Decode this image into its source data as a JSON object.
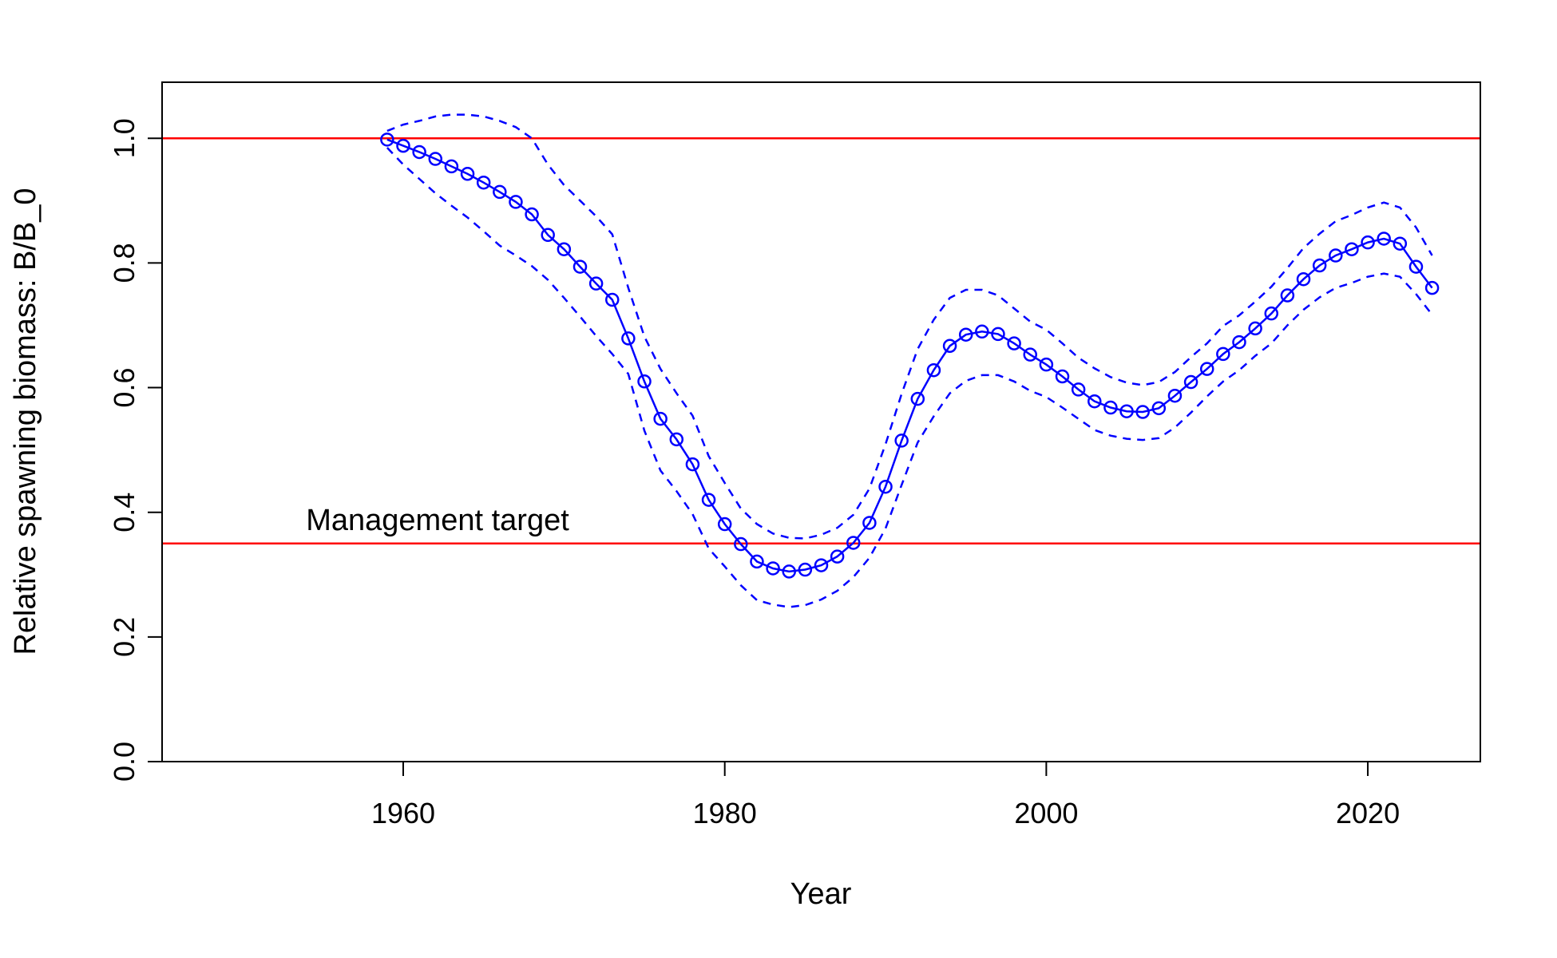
{
  "chart_data": {
    "type": "line",
    "title": "",
    "xlabel": "Year",
    "ylabel": "Relative spawning biomass: B/B_0",
    "xlim": [
      1945,
      2027
    ],
    "ylim": [
      0,
      1.09
    ],
    "x_ticks": [
      1960,
      1980,
      2000,
      2020
    ],
    "y_ticks": [
      0.0,
      0.2,
      0.4,
      0.6,
      0.8,
      1.0
    ],
    "x_tick_labels": [
      "1960",
      "1980",
      "2000",
      "2020"
    ],
    "y_tick_labels": [
      "0.0",
      "0.2",
      "0.4",
      "0.6",
      "0.8",
      "1.0"
    ],
    "grid": false,
    "colors": {
      "series": "#0000ff",
      "reference": "#ff0000"
    },
    "reference_lines": [
      {
        "y": 1.0
      },
      {
        "y": 0.35,
        "label": "Management target"
      }
    ],
    "x": [
      1959,
      1960,
      1961,
      1962,
      1963,
      1964,
      1965,
      1966,
      1967,
      1968,
      1969,
      1970,
      1971,
      1972,
      1973,
      1974,
      1975,
      1976,
      1977,
      1978,
      1979,
      1980,
      1981,
      1982,
      1983,
      1984,
      1985,
      1986,
      1987,
      1988,
      1989,
      1990,
      1991,
      1992,
      1993,
      1994,
      1995,
      1996,
      1997,
      1998,
      1999,
      2000,
      2001,
      2002,
      2003,
      2004,
      2005,
      2006,
      2007,
      2008,
      2009,
      2010,
      2011,
      2012,
      2013,
      2014,
      2015,
      2016,
      2017,
      2018,
      2019,
      2020,
      2021,
      2022,
      2023,
      2024
    ],
    "series": [
      {
        "role": "estimate",
        "style": "line+points",
        "values": [
          0.998,
          0.988,
          0.978,
          0.967,
          0.955,
          0.943,
          0.929,
          0.914,
          0.898,
          0.878,
          0.845,
          0.822,
          0.794,
          0.767,
          0.741,
          0.679,
          0.61,
          0.55,
          0.517,
          0.477,
          0.42,
          0.381,
          0.349,
          0.321,
          0.31,
          0.305,
          0.308,
          0.315,
          0.329,
          0.351,
          0.383,
          0.441,
          0.515,
          0.582,
          0.628,
          0.667,
          0.685,
          0.69,
          0.686,
          0.671,
          0.653,
          0.637,
          0.618,
          0.597,
          0.578,
          0.568,
          0.562,
          0.561,
          0.567,
          0.587,
          0.609,
          0.63,
          0.654,
          0.673,
          0.695,
          0.719,
          0.748,
          0.774,
          0.796,
          0.812,
          0.822,
          0.833,
          0.839,
          0.831,
          0.794,
          0.76
        ]
      },
      {
        "role": "upper_bound",
        "style": "dashed",
        "values": [
          1.012,
          1.022,
          1.028,
          1.035,
          1.038,
          1.038,
          1.035,
          1.028,
          1.018,
          1.0,
          0.958,
          0.925,
          0.9,
          0.875,
          0.846,
          0.76,
          0.682,
          0.63,
          0.591,
          0.555,
          0.49,
          0.447,
          0.406,
          0.381,
          0.366,
          0.359,
          0.358,
          0.364,
          0.375,
          0.396,
          0.438,
          0.509,
          0.59,
          0.662,
          0.709,
          0.744,
          0.757,
          0.757,
          0.748,
          0.727,
          0.706,
          0.693,
          0.671,
          0.648,
          0.631,
          0.617,
          0.608,
          0.604,
          0.609,
          0.625,
          0.649,
          0.671,
          0.699,
          0.716,
          0.738,
          0.762,
          0.792,
          0.824,
          0.847,
          0.867,
          0.877,
          0.889,
          0.897,
          0.889,
          0.857,
          0.812
        ]
      },
      {
        "role": "lower_bound",
        "style": "dashed",
        "values": [
          0.985,
          0.958,
          0.935,
          0.912,
          0.892,
          0.873,
          0.851,
          0.828,
          0.812,
          0.795,
          0.773,
          0.744,
          0.714,
          0.683,
          0.654,
          0.622,
          0.531,
          0.467,
          0.434,
          0.397,
          0.342,
          0.313,
          0.283,
          0.259,
          0.252,
          0.248,
          0.251,
          0.26,
          0.274,
          0.296,
          0.327,
          0.374,
          0.444,
          0.512,
          0.554,
          0.591,
          0.611,
          0.62,
          0.62,
          0.61,
          0.595,
          0.585,
          0.568,
          0.55,
          0.532,
          0.523,
          0.518,
          0.516,
          0.519,
          0.536,
          0.56,
          0.586,
          0.61,
          0.628,
          0.651,
          0.671,
          0.7,
          0.725,
          0.745,
          0.76,
          0.768,
          0.778,
          0.783,
          0.778,
          0.75,
          0.717
        ]
      }
    ]
  }
}
